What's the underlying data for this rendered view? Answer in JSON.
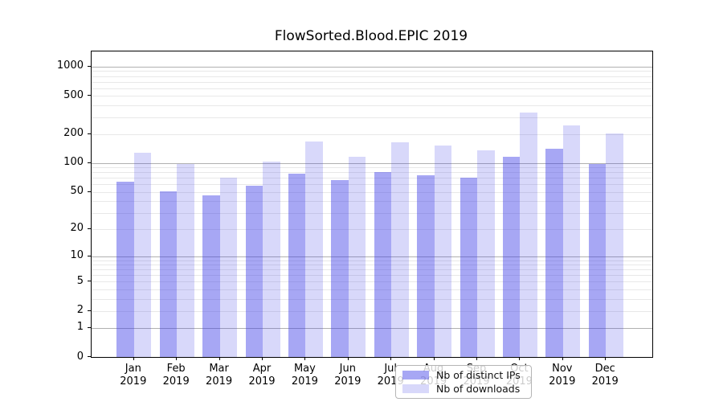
{
  "title": "FlowSorted.Blood.EPIC 2019",
  "legend": {
    "items": [
      {
        "label": "Nb of distinct IPs",
        "swatch_color": "rgba(60,60,230,0.45)"
      },
      {
        "label": "Nb of downloads",
        "swatch_color": "rgba(60,60,230,0.20)"
      }
    ]
  },
  "chart_data": {
    "type": "bar",
    "title": "FlowSorted.Blood.EPIC 2019",
    "categories": [
      "Jan 2019",
      "Feb 2019",
      "Mar 2019",
      "Apr 2019",
      "May 2019",
      "Jun 2019",
      "Jul 2019",
      "Aug 2019",
      "Sep 2019",
      "Oct 2019",
      "Nov 2019",
      "Dec 2019"
    ],
    "series": [
      {
        "name": "Nb of distinct IPs",
        "color": "rgba(60,60,230,0.45)",
        "values": [
          64,
          51,
          46,
          58,
          77,
          66,
          81,
          74,
          70,
          116,
          141,
          98
        ]
      },
      {
        "name": "Nb of downloads",
        "color": "rgba(60,60,230,0.20)",
        "values": [
          127,
          97,
          70,
          103,
          168,
          116,
          165,
          152,
          136,
          333,
          245,
          204
        ]
      }
    ],
    "yscale": "log1p",
    "ylim": [
      0,
      1437
    ],
    "y_ticks": [
      0,
      1,
      2,
      5,
      10,
      20,
      50,
      100,
      200,
      500,
      1000
    ],
    "grid": {
      "major": [
        1,
        10,
        100,
        1000
      ],
      "minor": [
        2,
        3,
        4,
        5,
        6,
        7,
        8,
        9,
        20,
        30,
        40,
        50,
        60,
        70,
        80,
        90,
        200,
        300,
        400,
        500,
        600,
        700,
        800,
        900
      ]
    },
    "legend_position": "lower center",
    "xlabel": "",
    "ylabel": ""
  }
}
